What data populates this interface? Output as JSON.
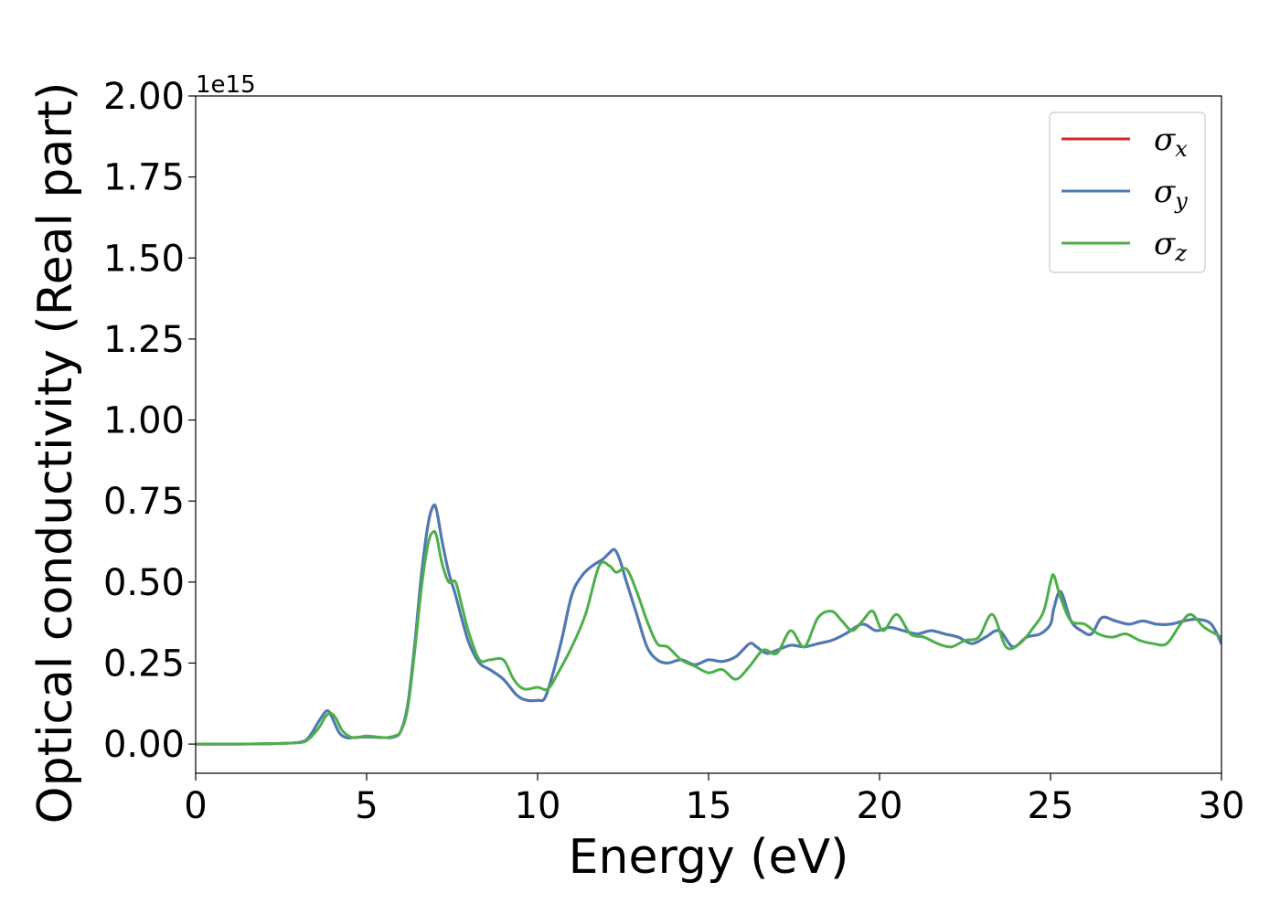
{
  "chart_data": {
    "type": "line",
    "xlabel": "Energy (eV)",
    "ylabel": "Optical conductivity (Real part)",
    "y_offset_text": "1e15",
    "xlim": [
      0,
      30
    ],
    "ylim": [
      -0.09,
      2.0
    ],
    "x_ticks": [
      0,
      5,
      10,
      15,
      20,
      25,
      30
    ],
    "x_tick_labels": [
      "0",
      "5",
      "10",
      "15",
      "20",
      "25",
      "30"
    ],
    "y_ticks": [
      0.0,
      0.25,
      0.5,
      0.75,
      1.0,
      1.25,
      1.5,
      1.75,
      2.0
    ],
    "y_tick_labels": [
      "0.00",
      "0.25",
      "0.50",
      "0.75",
      "1.00",
      "1.25",
      "1.50",
      "1.75",
      "2.00"
    ],
    "grid": false,
    "legend_position": "top-right",
    "series": [
      {
        "name": "σx",
        "symbol": "σ",
        "subscript": "x",
        "color": "#d62728",
        "x": [
          0,
          1,
          2,
          3,
          3.3,
          3.6,
          3.8,
          3.9,
          4.0,
          4.2,
          4.4,
          4.6,
          5.0,
          5.5,
          5.8,
          6.0,
          6.2,
          6.4,
          6.6,
          6.8,
          6.95,
          7.05,
          7.2,
          7.4,
          7.6,
          7.8,
          8.0,
          8.3,
          8.6,
          9.0,
          9.4,
          9.7,
          10.0,
          10.2,
          10.4,
          10.7,
          11.0,
          11.3,
          11.6,
          11.9,
          12.1,
          12.25,
          12.4,
          12.6,
          12.9,
          13.2,
          13.5,
          13.8,
          14.2,
          14.6,
          15.0,
          15.4,
          15.8,
          16.2,
          16.4,
          16.7,
          17.0,
          17.4,
          17.8,
          18.2,
          18.6,
          19.0,
          19.5,
          19.9,
          20.3,
          20.7,
          21.1,
          21.5,
          21.9,
          22.3,
          22.7,
          23.1,
          23.5,
          23.9,
          24.3,
          24.7,
          25.0,
          25.1,
          25.3,
          25.6,
          25.9,
          26.2,
          26.5,
          26.9,
          27.3,
          27.7,
          28.1,
          28.5,
          28.9,
          29.3,
          29.7,
          30.0
        ],
        "y": [
          0,
          0,
          0.001,
          0.005,
          0.02,
          0.07,
          0.1,
          0.1,
          0.08,
          0.035,
          0.02,
          0.02,
          0.022,
          0.02,
          0.022,
          0.04,
          0.12,
          0.3,
          0.52,
          0.68,
          0.735,
          0.72,
          0.63,
          0.53,
          0.46,
          0.38,
          0.31,
          0.25,
          0.23,
          0.2,
          0.15,
          0.135,
          0.135,
          0.14,
          0.2,
          0.32,
          0.46,
          0.52,
          0.55,
          0.57,
          0.59,
          0.6,
          0.57,
          0.5,
          0.4,
          0.3,
          0.26,
          0.25,
          0.26,
          0.245,
          0.26,
          0.255,
          0.27,
          0.31,
          0.3,
          0.28,
          0.29,
          0.305,
          0.3,
          0.31,
          0.32,
          0.34,
          0.37,
          0.35,
          0.36,
          0.35,
          0.34,
          0.35,
          0.34,
          0.33,
          0.31,
          0.33,
          0.35,
          0.3,
          0.33,
          0.34,
          0.37,
          0.42,
          0.47,
          0.38,
          0.35,
          0.34,
          0.39,
          0.38,
          0.37,
          0.38,
          0.37,
          0.37,
          0.38,
          0.385,
          0.37,
          0.31
        ]
      },
      {
        "name": "σy",
        "symbol": "σ",
        "subscript": "y",
        "color": "#4a7bb7",
        "x": [
          0,
          1,
          2,
          3,
          3.3,
          3.6,
          3.8,
          3.9,
          4.0,
          4.2,
          4.4,
          4.6,
          5.0,
          5.5,
          5.8,
          6.0,
          6.2,
          6.4,
          6.6,
          6.8,
          6.95,
          7.05,
          7.2,
          7.4,
          7.6,
          7.8,
          8.0,
          8.3,
          8.6,
          9.0,
          9.4,
          9.7,
          10.0,
          10.2,
          10.4,
          10.7,
          11.0,
          11.3,
          11.6,
          11.9,
          12.1,
          12.25,
          12.4,
          12.6,
          12.9,
          13.2,
          13.5,
          13.8,
          14.2,
          14.6,
          15.0,
          15.4,
          15.8,
          16.2,
          16.4,
          16.7,
          17.0,
          17.4,
          17.8,
          18.2,
          18.6,
          19.0,
          19.5,
          19.9,
          20.3,
          20.7,
          21.1,
          21.5,
          21.9,
          22.3,
          22.7,
          23.1,
          23.5,
          23.9,
          24.3,
          24.7,
          25.0,
          25.1,
          25.3,
          25.6,
          25.9,
          26.2,
          26.5,
          26.9,
          27.3,
          27.7,
          28.1,
          28.5,
          28.9,
          29.3,
          29.7,
          30.0
        ],
        "y": [
          0,
          0,
          0.001,
          0.005,
          0.02,
          0.07,
          0.1,
          0.1,
          0.08,
          0.035,
          0.02,
          0.02,
          0.022,
          0.02,
          0.022,
          0.04,
          0.12,
          0.3,
          0.52,
          0.68,
          0.735,
          0.72,
          0.63,
          0.53,
          0.46,
          0.38,
          0.31,
          0.25,
          0.23,
          0.2,
          0.15,
          0.135,
          0.135,
          0.14,
          0.2,
          0.32,
          0.46,
          0.52,
          0.55,
          0.57,
          0.59,
          0.6,
          0.57,
          0.5,
          0.4,
          0.3,
          0.26,
          0.25,
          0.26,
          0.245,
          0.26,
          0.255,
          0.27,
          0.31,
          0.3,
          0.28,
          0.29,
          0.305,
          0.3,
          0.31,
          0.32,
          0.34,
          0.37,
          0.35,
          0.36,
          0.35,
          0.34,
          0.35,
          0.34,
          0.33,
          0.31,
          0.33,
          0.35,
          0.3,
          0.33,
          0.34,
          0.37,
          0.42,
          0.47,
          0.38,
          0.35,
          0.34,
          0.39,
          0.38,
          0.37,
          0.38,
          0.37,
          0.37,
          0.38,
          0.385,
          0.37,
          0.31
        ]
      },
      {
        "name": "σz",
        "symbol": "σ",
        "subscript": "z",
        "color": "#4daf4a",
        "x": [
          0,
          1,
          2,
          3,
          3.3,
          3.6,
          3.8,
          3.95,
          4.1,
          4.3,
          4.6,
          5.0,
          5.5,
          5.8,
          6.0,
          6.2,
          6.4,
          6.6,
          6.8,
          6.95,
          7.05,
          7.2,
          7.4,
          7.6,
          7.8,
          8.0,
          8.3,
          8.6,
          9.0,
          9.3,
          9.6,
          10.0,
          10.3,
          10.6,
          11.0,
          11.4,
          11.8,
          12.1,
          12.3,
          12.6,
          12.9,
          13.2,
          13.5,
          13.8,
          14.2,
          14.6,
          15.0,
          15.4,
          15.8,
          16.2,
          16.6,
          17.0,
          17.4,
          17.8,
          18.2,
          18.6,
          18.9,
          19.2,
          19.5,
          19.8,
          20.1,
          20.5,
          20.9,
          21.3,
          21.7,
          22.1,
          22.5,
          22.9,
          23.3,
          23.7,
          24.1,
          24.5,
          24.8,
          25.0,
          25.1,
          25.3,
          25.6,
          26.0,
          26.4,
          26.8,
          27.2,
          27.6,
          28.0,
          28.4,
          28.8,
          29.1,
          29.5,
          30.0
        ],
        "y": [
          0,
          0,
          0.001,
          0.004,
          0.015,
          0.05,
          0.085,
          0.095,
          0.08,
          0.04,
          0.02,
          0.025,
          0.02,
          0.025,
          0.04,
          0.11,
          0.28,
          0.48,
          0.62,
          0.655,
          0.64,
          0.56,
          0.5,
          0.5,
          0.42,
          0.34,
          0.26,
          0.26,
          0.26,
          0.2,
          0.17,
          0.175,
          0.17,
          0.22,
          0.3,
          0.4,
          0.55,
          0.55,
          0.53,
          0.54,
          0.47,
          0.38,
          0.31,
          0.3,
          0.26,
          0.24,
          0.22,
          0.23,
          0.2,
          0.24,
          0.29,
          0.28,
          0.35,
          0.3,
          0.39,
          0.41,
          0.38,
          0.35,
          0.38,
          0.41,
          0.35,
          0.4,
          0.34,
          0.33,
          0.31,
          0.3,
          0.32,
          0.33,
          0.4,
          0.3,
          0.31,
          0.36,
          0.41,
          0.5,
          0.52,
          0.45,
          0.38,
          0.37,
          0.34,
          0.33,
          0.34,
          0.32,
          0.31,
          0.31,
          0.37,
          0.4,
          0.36,
          0.33
        ]
      }
    ]
  }
}
